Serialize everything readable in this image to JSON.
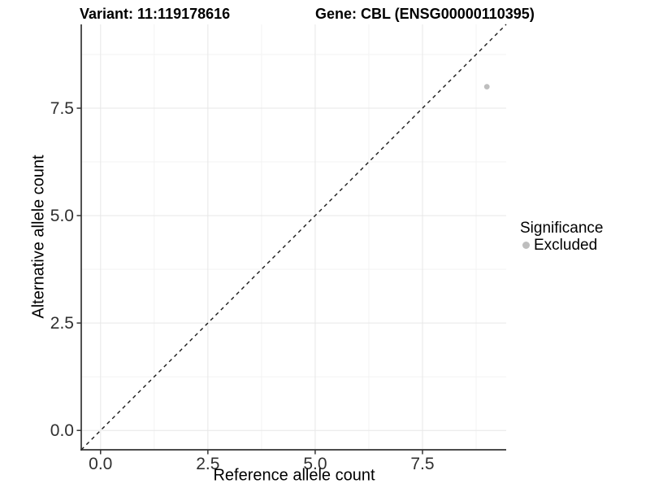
{
  "titles": {
    "variant": "Variant: 11:119178616",
    "gene": "Gene: CBL (ENSG00000110395)"
  },
  "axes": {
    "x_label": "Reference allele count",
    "y_label": "Alternative allele count"
  },
  "legend": {
    "title": "Significance",
    "items": [
      {
        "label": "Excluded",
        "color": "#bebebe"
      }
    ]
  },
  "colors": {
    "background": "#ffffff",
    "major_grid": "#e7e7e7",
    "minor_grid": "#f3f3f3",
    "axis_line": "#333333",
    "tick_mark": "#333333",
    "tick_text": "#303030",
    "point": "#bebebe",
    "reference_line": "#1a1a1a"
  },
  "chart_data": {
    "type": "scatter",
    "title_left": "Variant: 11:119178616",
    "title_right": "Gene: CBL (ENSG00000110395)",
    "xlabel": "Reference allele count",
    "ylabel": "Alternative allele count",
    "xlim": [
      -0.45,
      9.45
    ],
    "ylim": [
      -0.45,
      9.45
    ],
    "x_ticks": [
      0,
      2.5,
      5,
      7.5
    ],
    "y_ticks": [
      0,
      2.5,
      5,
      7.5
    ],
    "x_tick_labels": [
      "0.0",
      "2.5",
      "5.0",
      "7.5"
    ],
    "y_tick_labels": [
      "0.0",
      "2.5",
      "5.0",
      "7.5"
    ],
    "minor_ticks": [
      1.25,
      3.75,
      6.25,
      8.75
    ],
    "grid": "major+minor",
    "legend_position": "right",
    "series": [
      {
        "name": "Excluded",
        "color": "#bebebe",
        "points": [
          [
            9,
            8
          ]
        ]
      }
    ],
    "reference_line": {
      "slope": 1,
      "intercept": 0,
      "style": "dashed"
    }
  }
}
